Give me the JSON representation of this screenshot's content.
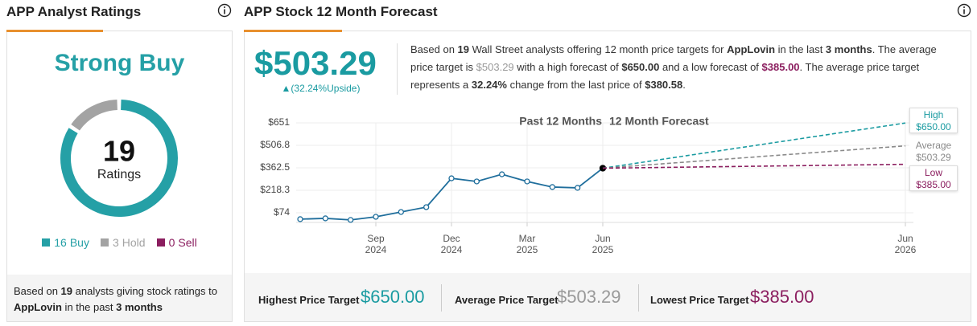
{
  "ratings_panel": {
    "title": "APP Analyst Ratings",
    "consensus": "Strong Buy",
    "footer": [
      "Based on ",
      "19",
      " analysts giving stock ratings to ",
      "AppLovin",
      " in the past ",
      "3 months"
    ]
  },
  "forecast_panel": {
    "title": "APP Stock 12 Month Forecast",
    "price": "$503.29",
    "upside": "▲(32.24%Upside)",
    "description": [
      "Based on ",
      "19",
      " Wall Street analysts offering 12 month price targets for ",
      "AppLovin",
      " in the last ",
      "3 months",
      ". The average price target is ",
      "$503.29",
      " with a high forecast of ",
      "$650.00",
      " and a low forecast of ",
      "$385.00",
      ". The average price target represents a ",
      "32.24%",
      " change from the last price of ",
      "$380.58",
      "."
    ],
    "summary": [
      {
        "label": "Highest Price Target",
        "value": "$650.00"
      },
      {
        "label": "Average Price Target",
        "value": "$503.29"
      },
      {
        "label": "Lowest Price Target",
        "value": "$385.00"
      }
    ]
  },
  "chart_data": [
    {
      "type": "pie",
      "donut": true,
      "categories": [
        "Buy",
        "Hold",
        "Sell"
      ],
      "values": [
        16,
        3,
        0
      ],
      "colors": [
        "#25a0a6",
        "#a3a3a3",
        "#8b1e5f"
      ],
      "center_value": 19,
      "center_label": "Ratings"
    },
    {
      "type": "line",
      "annotations": [
        "Past 12 Months",
        "12 Month Forecast"
      ],
      "xlim": [
        "2024-06",
        "2026-06"
      ],
      "xticks": [
        {
          "value": "2024-09",
          "label": "Sep 2024"
        },
        {
          "value": "2024-12",
          "label": "Dec 2024"
        },
        {
          "value": "2025-03",
          "label": "Mar 2025"
        },
        {
          "value": "2025-06",
          "label": "Jun 2025"
        },
        {
          "value": "2026-06",
          "label": "Jun 2026"
        }
      ],
      "ylim": [
        12,
        651
      ],
      "yticks": [
        {
          "value": 74,
          "label": "$74"
        },
        {
          "value": 218.3,
          "label": "$218.3"
        },
        {
          "value": 362.5,
          "label": "$362.5"
        },
        {
          "value": 506.8,
          "label": "$506.8"
        },
        {
          "value": 651,
          "label": "$651"
        }
      ],
      "grid": true,
      "series": [
        {
          "color": "#1f6e9c",
          "x": [
            "2024-06",
            "2024-07",
            "2024-08",
            "2024-09",
            "2024-10",
            "2024-11",
            "2024-12",
            "2025-01",
            "2025-02",
            "2025-03",
            "2025-04",
            "2025-05",
            "2025-06"
          ],
          "values": [
            33,
            38,
            28,
            48,
            79,
            110,
            295,
            275,
            321,
            275,
            239,
            234,
            360
          ]
        },
        {
          "name": "High",
          "color": "#1a9ba1",
          "x": [
            "2025-06",
            "2026-06"
          ],
          "values": [
            360,
            650
          ],
          "value_labels": [
            null,
            "$650.00"
          ]
        },
        {
          "name": "Average",
          "color": "#8a8a8a",
          "x": [
            "2025-06",
            "2026-06"
          ],
          "values": [
            360,
            503.29
          ],
          "value_labels": [
            null,
            "$503.29"
          ]
        },
        {
          "name": "Low",
          "color": "#8b1e5f",
          "x": [
            "2025-06",
            "2026-06"
          ],
          "values": [
            360,
            385
          ],
          "value_labels": [
            null,
            "$385.00"
          ]
        }
      ]
    }
  ]
}
